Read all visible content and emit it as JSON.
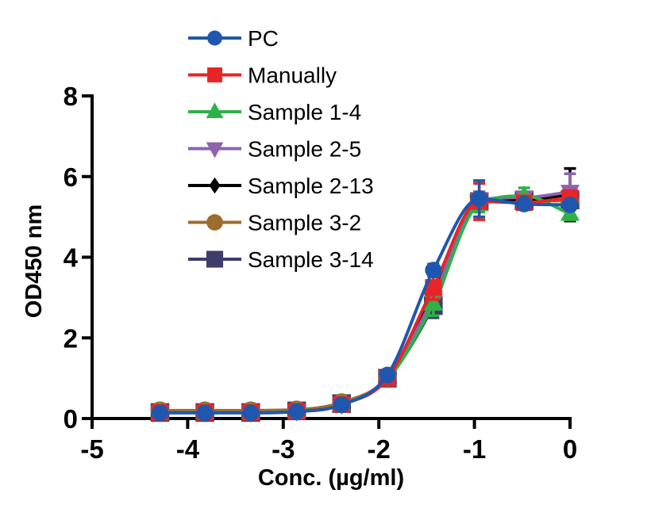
{
  "figure": {
    "background": "#ffffff",
    "axis_color": "#000000"
  },
  "chart_data": {
    "type": "line",
    "title": "",
    "xlabel": "Conc. (µg/ml)",
    "ylabel": "OD450 nm",
    "xlim": [
      -5,
      0
    ],
    "ylim": [
      0,
      8
    ],
    "xticks": [
      -5,
      -4,
      -3,
      -2,
      -1,
      0
    ],
    "yticks": [
      0,
      2,
      4,
      6,
      8
    ],
    "grid": false,
    "legend_position": "top-left",
    "x": [
      -4.29,
      -3.82,
      -3.34,
      -2.86,
      -2.39,
      -1.91,
      -1.43,
      -0.95,
      -0.48,
      0
    ],
    "series": [
      {
        "name": "PC",
        "color": "#2057ae",
        "marker": "circle",
        "marker_size": 21,
        "values": [
          0.14,
          0.14,
          0.14,
          0.17,
          0.34,
          1.08,
          3.68,
          5.45,
          5.32,
          5.3
        ],
        "errors": [
          0,
          0,
          0,
          0,
          0,
          0,
          0.15,
          0.45,
          0.1,
          0.1
        ]
      },
      {
        "name": "Manually",
        "color": "#e92427",
        "marker": "square",
        "marker_size": 21,
        "values": [
          0.15,
          0.15,
          0.15,
          0.18,
          0.35,
          1.0,
          3.25,
          5.38,
          5.35,
          5.48
        ],
        "errors": [
          0,
          0,
          0,
          0,
          0,
          0,
          0.3,
          0.45,
          0.1,
          0.15
        ]
      },
      {
        "name": "Sample 1-4",
        "color": "#2fb148",
        "marker": "triangle-up",
        "marker_size": 21,
        "values": [
          0.16,
          0.16,
          0.16,
          0.19,
          0.36,
          0.97,
          2.85,
          5.32,
          5.52,
          5.08
        ],
        "errors": [
          0,
          0,
          0,
          0,
          0,
          0,
          0.3,
          0.2,
          0.2,
          0.15
        ]
      },
      {
        "name": "Sample 2-5",
        "color": "#8c63ad",
        "marker": "triangle-down",
        "marker_size": 21,
        "values": [
          0.15,
          0.15,
          0.15,
          0.18,
          0.35,
          1.0,
          3.0,
          5.42,
          5.48,
          5.62
        ],
        "errors": [
          0,
          0,
          0,
          0,
          0,
          0,
          0.25,
          0.2,
          0.1,
          0.45
        ]
      },
      {
        "name": "Sample 2-13",
        "color": "#000000",
        "marker": "diamond",
        "marker_size": 19,
        "values": [
          0.15,
          0.15,
          0.15,
          0.18,
          0.35,
          1.0,
          3.05,
          5.42,
          5.42,
          5.55
        ],
        "errors": [
          0,
          0,
          0,
          0,
          0,
          0,
          0.25,
          0.2,
          0.1,
          0.65
        ]
      },
      {
        "name": "Sample 3-2",
        "color": "#9c6d2c",
        "marker": "circle",
        "marker_size": 23,
        "values": [
          0.2,
          0.2,
          0.2,
          0.22,
          0.4,
          1.02,
          3.1,
          5.4,
          5.4,
          5.4
        ],
        "errors": [
          0,
          0,
          0,
          0,
          0,
          0,
          0.25,
          0.2,
          0.1,
          0.1
        ]
      },
      {
        "name": "Sample 3-14",
        "color": "#3e3c6a",
        "marker": "square",
        "marker_size": 23.5,
        "values": [
          0.15,
          0.15,
          0.15,
          0.19,
          0.37,
          1.0,
          2.8,
          5.38,
          5.4,
          5.42
        ],
        "errors": [
          0,
          0,
          0,
          0,
          0,
          0,
          0.3,
          0.2,
          0.1,
          0.15
        ]
      }
    ]
  }
}
